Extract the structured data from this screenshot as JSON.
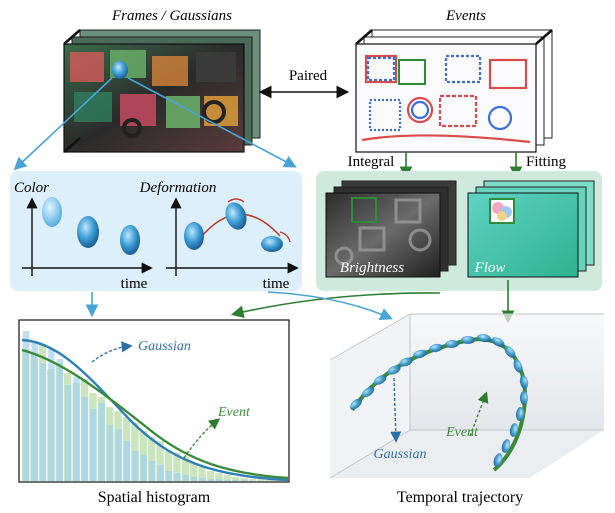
{
  "panels": {
    "frames_title": "Frames / Gaussians",
    "events_title": "Events",
    "paired_label": "Paired",
    "integral_label": "Integral",
    "fitting_label": "Fitting",
    "brightness_label": "Brightness",
    "flow_label": "Flow",
    "color_label": "Color",
    "deformation_label": "Deformation",
    "time_label_1": "time",
    "time_label_2": "time",
    "histogram_title": "Spatial histogram",
    "trajectory_title": "Temporal trajectory",
    "hist_gaussian_label": "Gaussian",
    "hist_event_label": "Event",
    "traj_gaussian_label": "Gaussian",
    "traj_event_label": "Event"
  },
  "colors": {
    "light_blue_panel": "#dcefFa",
    "light_green_panel": "#cfe9dc",
    "gaussian_blue": "#2f7fb8",
    "event_green": "#3a8a3a",
    "arrow_blue": "#4aa3d6",
    "arrow_green": "#2e7d32",
    "deform_red": "#c0392b"
  }
}
